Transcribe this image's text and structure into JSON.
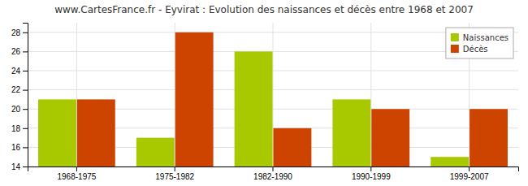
{
  "chart_data": {
    "type": "bar",
    "title": "www.CartesFrance.fr - Eyvirat : Evolution des naissances et décès entre 1968 et 2007",
    "categories": [
      "1968-1975",
      "1975-1982",
      "1982-1990",
      "1990-1999",
      "1999-2007"
    ],
    "series": [
      {
        "name": "Naissances",
        "color": "#a8c800",
        "values": [
          21,
          17,
          26,
          21,
          15
        ]
      },
      {
        "name": "Décès",
        "color": "#cc4400",
        "values": [
          21,
          28,
          18,
          20,
          20
        ]
      }
    ],
    "ylim": [
      14,
      29
    ],
    "yticks": [
      14,
      16,
      18,
      20,
      22,
      24,
      26,
      28
    ],
    "grid": true,
    "legend": "upper right"
  }
}
